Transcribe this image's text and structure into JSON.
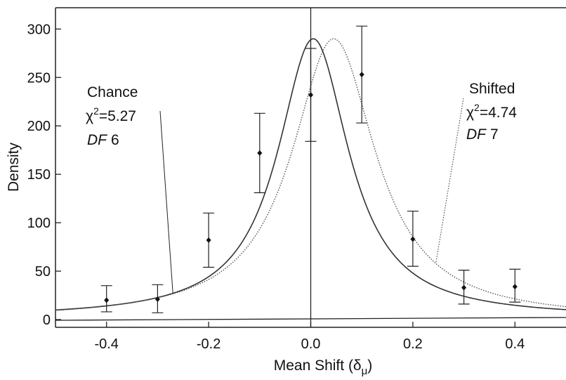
{
  "chart_data": {
    "type": "line",
    "title": "",
    "xlabel": "Mean Shift (δ",
    "xlabel_sub": "μ",
    "xlabel_close": ")",
    "ylabel": "Density",
    "xlim": [
      -0.5,
      0.5
    ],
    "ylim": [
      -8,
      322
    ],
    "xticks": [
      -0.4,
      -0.2,
      0.0,
      0.2,
      0.4
    ],
    "xtick_labels": [
      "-0.4",
      "-0.2",
      "0.0",
      "0.2",
      "0.4"
    ],
    "yticks": [
      0,
      50,
      100,
      150,
      200,
      250,
      300
    ],
    "ytick_labels": [
      "0",
      "50",
      "100",
      "150",
      "200",
      "250",
      "300"
    ],
    "grid": false,
    "points": {
      "name": "",
      "x": [
        -0.4,
        -0.3,
        -0.2,
        -0.1,
        0.0,
        0.1,
        0.2,
        0.3,
        0.4
      ],
      "y": [
        20,
        21,
        82,
        172,
        232,
        253,
        83,
        33,
        34
      ],
      "err_low": [
        8,
        7,
        54,
        131,
        184,
        203,
        55,
        16,
        18
      ],
      "err_high": [
        35,
        36,
        110,
        213,
        280,
        303,
        112,
        51,
        52
      ]
    },
    "series": [
      {
        "name": "Chance",
        "style": "solid",
        "color": "#333333",
        "center": 0.005,
        "gamma": 0.085,
        "peak": 290,
        "base": 2
      },
      {
        "name": "Shifted",
        "style": "dotted",
        "color": "#555555",
        "center": 0.045,
        "gamma": 0.1,
        "peak": 290,
        "base": 0
      }
    ],
    "annotations": [
      {
        "id": "chance",
        "line1": "Chance",
        "chi_symbol": "χ",
        "chi_exp": "2",
        "chi_value": "=5.27",
        "df_label": "DF",
        "df_value": "6",
        "points_to_x": -0.27
      },
      {
        "id": "shifted",
        "line1": "Shifted",
        "chi_symbol": "χ",
        "chi_exp": "2",
        "chi_value": "=4.74",
        "df_label": "DF",
        "df_value": "7",
        "points_to_x": 0.245
      }
    ]
  }
}
